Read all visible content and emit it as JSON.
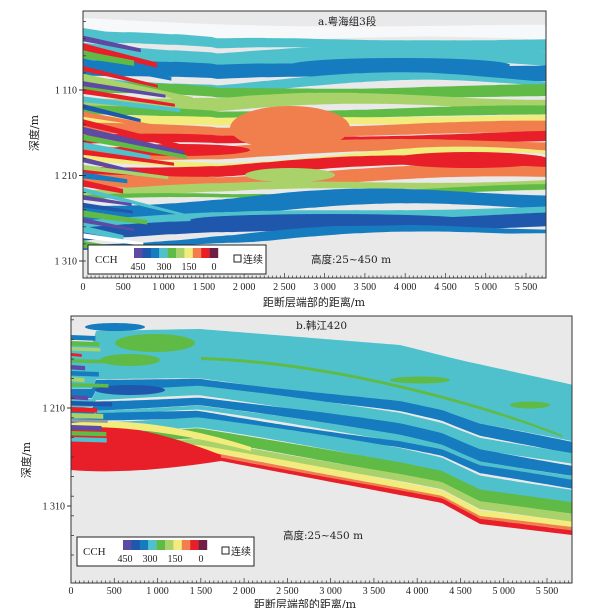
{
  "chart_data": [
    {
      "type": "heatmap",
      "id": "a",
      "title": "a.粤海组3段",
      "xlabel": "距断层端部的距离/m",
      "ylabel": "深度/m",
      "x_ticks": [
        "0",
        "500",
        "1 000",
        "1 500",
        "2 000",
        "2 500",
        "3 000",
        "3 500",
        "4 000",
        "4 500",
        "5 000",
        "5 500"
      ],
      "x_tick_values": [
        0,
        500,
        1000,
        1500,
        2000,
        2500,
        3000,
        3500,
        4000,
        4500,
        5000,
        5500
      ],
      "y_ticks": [
        "1 110",
        "1 210",
        "1 310"
      ],
      "y_tick_values": [
        1110,
        1210,
        1310
      ],
      "xlim": [
        0,
        5750
      ],
      "ylim": [
        1330,
        1015
      ],
      "annotation": "高度:25~450 m",
      "legend": {
        "label": "CCH",
        "tick_labels": [
          "450",
          "300",
          "150",
          "0"
        ],
        "continuous_label": "连续"
      },
      "layers_top_to_bottom": [
        {
          "cch_class": "cyan",
          "depth_start_left": 1040,
          "depth_start_right": 1050
        },
        {
          "cch_class": "blue",
          "depth_mid": 1070
        },
        {
          "cch_class": "green",
          "depth_mid": 1100
        },
        {
          "cch_class": "yellow-green",
          "depth_mid": 1110
        },
        {
          "cch_class": "orange-red",
          "depth_mid": 1150
        },
        {
          "cch_class": "blue",
          "depth_mid": 1240
        }
      ]
    },
    {
      "type": "heatmap",
      "id": "b",
      "title": "b.韩江420",
      "xlabel": "距断层端部的距离/m",
      "ylabel": "深度/m",
      "x_ticks": [
        "0",
        "500",
        "1 000",
        "1 500",
        "2 000",
        "2 500",
        "3 000",
        "3 500",
        "4 000",
        "4 500",
        "5 000",
        "5 500"
      ],
      "x_tick_values": [
        0,
        500,
        1000,
        1500,
        2000,
        2500,
        3000,
        3500,
        4000,
        4500,
        5000,
        5500
      ],
      "y_ticks": [
        "1 210",
        "1 310"
      ],
      "y_tick_values": [
        1210,
        1310
      ],
      "xlim": [
        0,
        5800
      ],
      "ylim": [
        1370,
        1115
      ],
      "annotation": "高度:25~450 m",
      "legend": {
        "label": "CCH",
        "tick_labels": [
          "450",
          "300",
          "150",
          "0"
        ],
        "continuous_label": "连续"
      },
      "layers_top_to_bottom": [
        {
          "cch_class": "cyan",
          "depth_mid": 1160
        },
        {
          "cch_class": "blue",
          "depth_mid": 1200
        },
        {
          "cch_class": "green",
          "depth_mid": 1235
        },
        {
          "cch_class": "yellow",
          "depth_mid": 1245
        },
        {
          "cch_class": "red",
          "depth_mid": 1255
        }
      ]
    }
  ],
  "palette": {
    "colors": [
      "#5d4aa3",
      "#1f57ad",
      "#167bbf",
      "#4fc1cc",
      "#5fbb46",
      "#a9d36a",
      "#f2ec7c",
      "#f07f4d",
      "#e81f28",
      "#6f1f45"
    ],
    "background": "#e9e9ea",
    "white_band": "#f7f8f9"
  }
}
